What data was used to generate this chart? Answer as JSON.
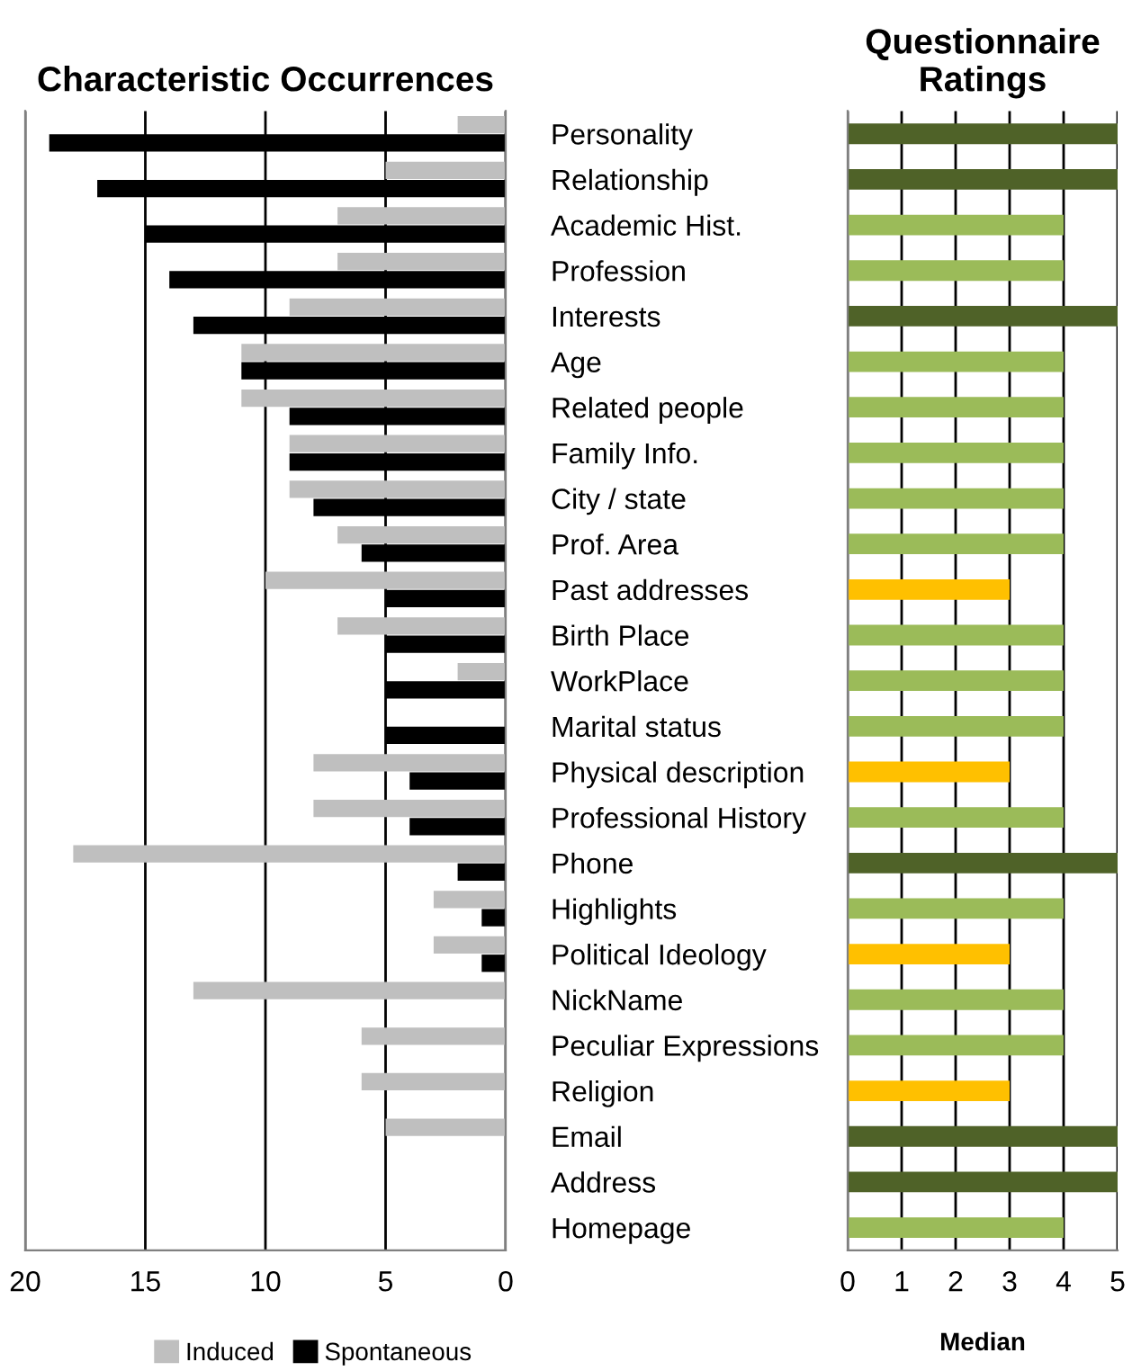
{
  "chart_data": [
    {
      "type": "bar",
      "orientation": "horizontal",
      "title": "Characteristic Occurrences",
      "categories": [
        "Personality",
        "Relationship",
        "Academic Hist.",
        "Profession",
        "Interests",
        "Age",
        "Related people",
        "Family Info.",
        "City / state",
        "Prof. Area",
        "Past addresses",
        "Birth Place",
        "WorkPlace",
        "Marital status",
        "Physical description",
        "Professional History",
        "Phone",
        "Highlights",
        "Political Ideology",
        "NickName",
        "Peculiar Expressions",
        "Religion",
        "Email",
        "Address",
        "Homepage"
      ],
      "series": [
        {
          "name": "Induced",
          "color": "#bfbfbf",
          "values": [
            2,
            5,
            7,
            7,
            9,
            11,
            11,
            9,
            9,
            7,
            10,
            7,
            2,
            0,
            8,
            8,
            18,
            3,
            3,
            13,
            6,
            6,
            5,
            0,
            0
          ]
        },
        {
          "name": "Spontaneous",
          "color": "#000000",
          "values": [
            19,
            17,
            15,
            14,
            13,
            11,
            9,
            9,
            8,
            6,
            5,
            5,
            5,
            5,
            4,
            4,
            2,
            1,
            1,
            0,
            0,
            0,
            0,
            0,
            0
          ]
        }
      ],
      "xlim": [
        20,
        0
      ],
      "xticks": [
        20,
        15,
        10,
        5,
        0
      ],
      "grid": "x",
      "legend": "bottom"
    },
    {
      "type": "bar",
      "orientation": "horizontal",
      "title": "Questionnaire Ratings",
      "xlabel": "Median",
      "categories": [
        null,
        null,
        null,
        null,
        null,
        null,
        null,
        null,
        null,
        null,
        null,
        null,
        null,
        null,
        null,
        null,
        null,
        null,
        null,
        null,
        null,
        null,
        null,
        null,
        null
      ],
      "values": [
        5,
        5,
        4,
        4,
        5,
        4,
        4,
        4,
        4,
        4,
        3,
        4,
        4,
        4,
        3,
        4,
        5,
        4,
        3,
        4,
        4,
        3,
        5,
        5,
        4
      ],
      "colors": [
        "#4f6228",
        "#4f6228",
        "#9bbb59",
        "#9bbb59",
        "#4f6228",
        "#9bbb59",
        "#9bbb59",
        "#9bbb59",
        "#9bbb59",
        "#9bbb59",
        "#ffc000",
        "#9bbb59",
        "#9bbb59",
        "#9bbb59",
        "#ffc000",
        "#9bbb59",
        "#4f6228",
        "#9bbb59",
        "#ffc000",
        "#9bbb59",
        "#9bbb59",
        "#ffc000",
        "#4f6228",
        "#4f6228",
        "#9bbb59"
      ],
      "xlim": [
        0,
        5
      ],
      "xticks": [
        0,
        1,
        2,
        3,
        4,
        5
      ],
      "grid": "x"
    }
  ]
}
